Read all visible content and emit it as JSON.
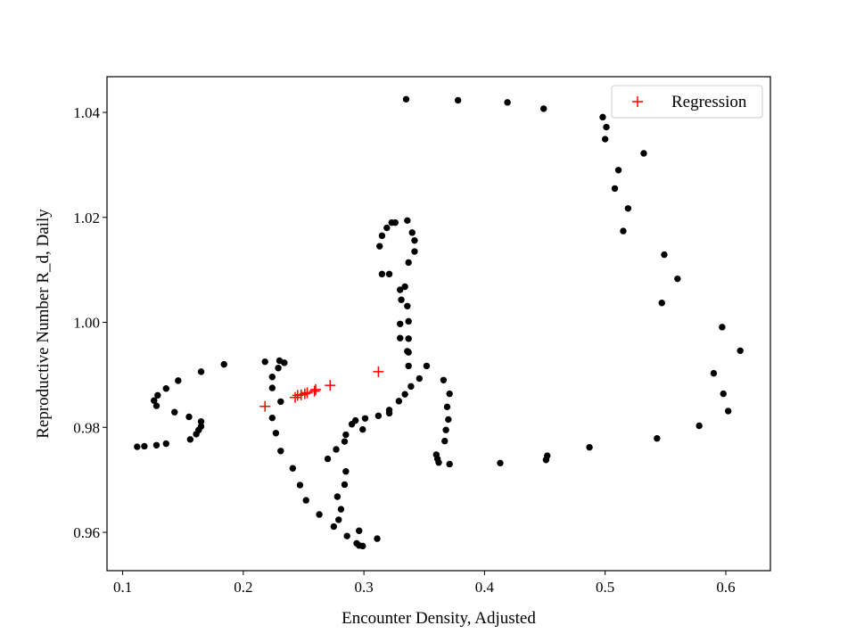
{
  "chart_data": {
    "type": "scatter",
    "title": "",
    "xlabel": "Encounter Density, Adjusted",
    "ylabel": "Reproductive Number R_d, Daily",
    "xlim": [
      0.087,
      0.637
    ],
    "ylim": [
      0.9527,
      1.0468
    ],
    "xticks": [
      0.1,
      0.2,
      0.3,
      0.4,
      0.5,
      0.6
    ],
    "xtick_labels": [
      "0.1",
      "0.2",
      "0.3",
      "0.4",
      "0.5",
      "0.6"
    ],
    "yticks": [
      0.96,
      0.98,
      1.0,
      1.02,
      1.04
    ],
    "ytick_labels": [
      "0.96",
      "0.98",
      "1.00",
      "1.02",
      "1.04"
    ],
    "grid": false,
    "legend_position": "top-right",
    "series": [
      {
        "name": "",
        "marker": "circle",
        "color": "#000000",
        "points": [
          [
            0.335,
            1.0425
          ],
          [
            0.378,
            1.0423
          ],
          [
            0.419,
            1.0419
          ],
          [
            0.449,
            1.0407
          ],
          [
            0.498,
            1.0391
          ],
          [
            0.501,
            1.0372
          ],
          [
            0.5,
            1.0349
          ],
          [
            0.532,
            1.0322
          ],
          [
            0.511,
            1.029
          ],
          [
            0.508,
            1.0255
          ],
          [
            0.519,
            1.0217
          ],
          [
            0.515,
            1.0174
          ],
          [
            0.549,
            1.0129
          ],
          [
            0.56,
            1.0083
          ],
          [
            0.547,
            1.0037
          ],
          [
            0.597,
            0.9991
          ],
          [
            0.612,
            0.9946
          ],
          [
            0.59,
            0.9903
          ],
          [
            0.598,
            0.9864
          ],
          [
            0.602,
            0.9831
          ],
          [
            0.578,
            0.9803
          ],
          [
            0.543,
            0.9779
          ],
          [
            0.487,
            0.9762
          ],
          [
            0.452,
            0.9746
          ],
          [
            0.451,
            0.9738
          ],
          [
            0.413,
            0.9732
          ],
          [
            0.371,
            0.973
          ],
          [
            0.362,
            0.9733
          ],
          [
            0.361,
            0.974
          ],
          [
            0.36,
            0.9748
          ],
          [
            0.367,
            0.9774
          ],
          [
            0.368,
            0.9795
          ],
          [
            0.37,
            0.9815
          ],
          [
            0.369,
            0.9839
          ],
          [
            0.371,
            0.9864
          ],
          [
            0.366,
            0.989
          ],
          [
            0.352,
            0.9917
          ],
          [
            0.346,
            0.9893
          ],
          [
            0.339,
            0.9878
          ],
          [
            0.334,
            0.9863
          ],
          [
            0.329,
            0.985
          ],
          [
            0.321,
            0.9833
          ],
          [
            0.321,
            0.9827
          ],
          [
            0.312,
            0.9822
          ],
          [
            0.301,
            0.9817
          ],
          [
            0.293,
            0.9813
          ],
          [
            0.29,
            0.9806
          ],
          [
            0.299,
            0.9796
          ],
          [
            0.285,
            0.9786
          ],
          [
            0.284,
            0.9773
          ],
          [
            0.277,
            0.9758
          ],
          [
            0.27,
            0.974
          ],
          [
            0.285,
            0.9716
          ],
          [
            0.284,
            0.9691
          ],
          [
            0.278,
            0.9668
          ],
          [
            0.281,
            0.9644
          ],
          [
            0.279,
            0.9624
          ],
          [
            0.275,
            0.9611
          ],
          [
            0.296,
            0.9603
          ],
          [
            0.286,
            0.9593
          ],
          [
            0.294,
            0.9579
          ],
          [
            0.296,
            0.9575
          ],
          [
            0.299,
            0.9574
          ],
          [
            0.311,
            0.9588
          ],
          [
            0.263,
            0.9634
          ],
          [
            0.252,
            0.9661
          ],
          [
            0.247,
            0.969
          ],
          [
            0.241,
            0.9722
          ],
          [
            0.231,
            0.9755
          ],
          [
            0.227,
            0.9789
          ],
          [
            0.224,
            0.9818
          ],
          [
            0.231,
            0.9849
          ],
          [
            0.224,
            0.9875
          ],
          [
            0.224,
            0.9896
          ],
          [
            0.229,
            0.9913
          ],
          [
            0.23,
            0.9927
          ],
          [
            0.234,
            0.9923
          ],
          [
            0.218,
            0.9925
          ],
          [
            0.184,
            0.992
          ],
          [
            0.165,
            0.9906
          ],
          [
            0.146,
            0.9889
          ],
          [
            0.136,
            0.9874
          ],
          [
            0.129,
            0.9861
          ],
          [
            0.126,
            0.9851
          ],
          [
            0.128,
            0.9841
          ],
          [
            0.143,
            0.9829
          ],
          [
            0.155,
            0.982
          ],
          [
            0.165,
            0.9811
          ],
          [
            0.165,
            0.9802
          ],
          [
            0.163,
            0.9795
          ],
          [
            0.161,
            0.9787
          ],
          [
            0.156,
            0.9777
          ],
          [
            0.136,
            0.9769
          ],
          [
            0.128,
            0.9766
          ],
          [
            0.118,
            0.9764
          ],
          [
            0.112,
            0.9763
          ],
          [
            0.337,
            0.9917
          ],
          [
            0.337,
            0.9943
          ],
          [
            0.336,
            0.9945
          ],
          [
            0.33,
            0.997
          ],
          [
            0.337,
            0.9969
          ],
          [
            0.33,
            0.9997
          ],
          [
            0.337,
            1.0002
          ],
          [
            0.336,
            1.0031
          ],
          [
            0.331,
            1.0043
          ],
          [
            0.334,
            1.0068
          ],
          [
            0.33,
            1.0062
          ],
          [
            0.321,
            1.0092
          ],
          [
            0.315,
            1.0092
          ],
          [
            0.337,
            1.0114
          ],
          [
            0.342,
            1.0135
          ],
          [
            0.313,
            1.0145
          ],
          [
            0.342,
            1.0156
          ],
          [
            0.315,
            1.0165
          ],
          [
            0.34,
            1.0171
          ],
          [
            0.319,
            1.018
          ],
          [
            0.323,
            1.019
          ],
          [
            0.326,
            1.019
          ],
          [
            0.336,
            1.0194
          ]
        ]
      },
      {
        "name": "Regression",
        "marker": "plus",
        "color": "#ff0000",
        "points": [
          [
            0.218,
            0.984
          ],
          [
            0.243,
            0.9857
          ],
          [
            0.245,
            0.9861
          ],
          [
            0.248,
            0.9862
          ],
          [
            0.251,
            0.9864
          ],
          [
            0.253,
            0.9866
          ],
          [
            0.259,
            0.9869
          ],
          [
            0.26,
            0.9872
          ],
          [
            0.272,
            0.988
          ],
          [
            0.312,
            0.9906
          ]
        ]
      }
    ],
    "legend": [
      {
        "label": "Regression",
        "marker": "plus",
        "color": "#ff0000"
      }
    ]
  }
}
